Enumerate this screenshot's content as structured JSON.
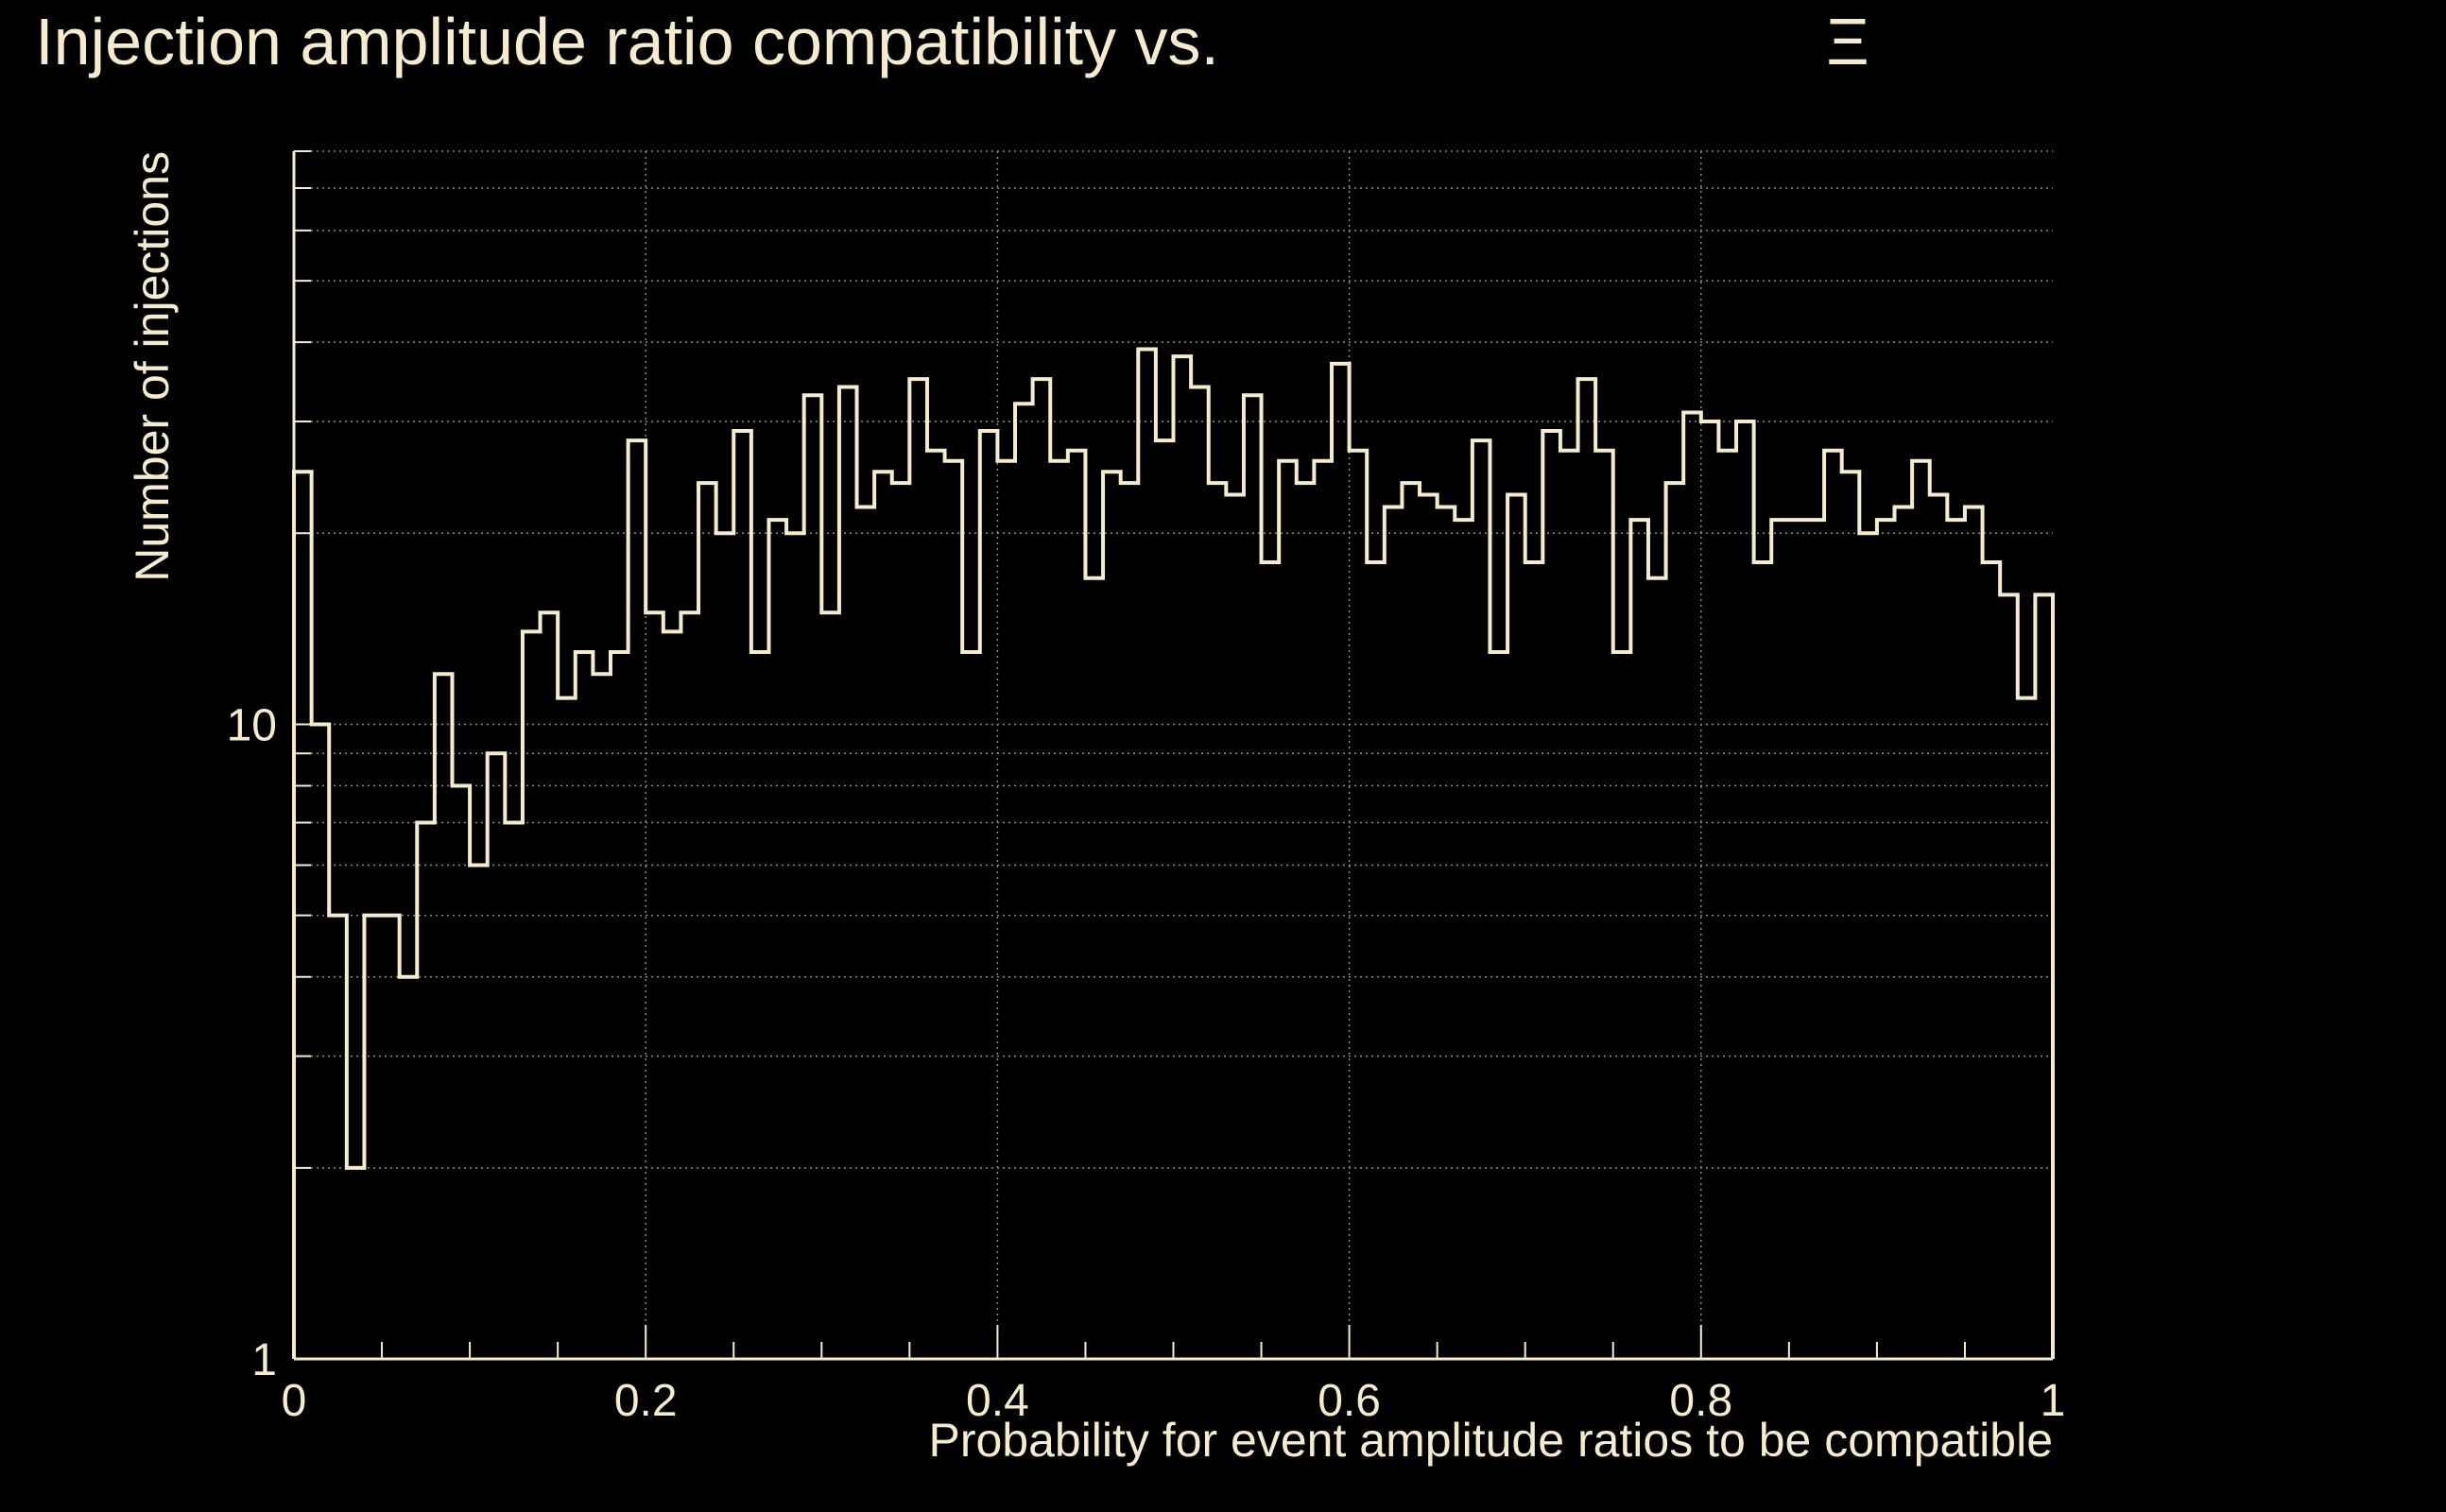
{
  "colors": {
    "background": "#000000",
    "foreground": "#f5ecd0",
    "grid": "#8a8a8a"
  },
  "chart_data": {
    "type": "bar",
    "title": "Injection amplitude ratio compatibility vs.",
    "title_symbol": "Ξ",
    "xlabel": "Probability for event amplitude ratios to be compatible",
    "ylabel": "Number of injections",
    "xlim": [
      0,
      1
    ],
    "ylim": [
      1,
      80
    ],
    "y_scale": "log",
    "grid": true,
    "x_ticks": [
      0,
      0.2,
      0.4,
      0.6,
      0.8,
      1
    ],
    "x_tick_labels": [
      "0",
      "0.2",
      "0.4",
      "0.6",
      "0.8",
      "1"
    ],
    "y_ticks": [
      1,
      10
    ],
    "y_tick_labels": [
      "1",
      "10"
    ],
    "bin_width": 0.01,
    "values": [
      25,
      10,
      5,
      2,
      5,
      5,
      4,
      7,
      12,
      8,
      6,
      9,
      7,
      14,
      15,
      11,
      13,
      12,
      13,
      28,
      15,
      14,
      15,
      24,
      20,
      29,
      13,
      21,
      20,
      33,
      15,
      34,
      22,
      25,
      24,
      35,
      27,
      26,
      13,
      29,
      26,
      32,
      35,
      26,
      27,
      17,
      25,
      24,
      39,
      28,
      38,
      34,
      24,
      23,
      33,
      18,
      26,
      24,
      26,
      37,
      27,
      18,
      22,
      24,
      23,
      22,
      21,
      28,
      13,
      23,
      18,
      29,
      27,
      35,
      27,
      13,
      21,
      17,
      24,
      31,
      30,
      27,
      30,
      18,
      21,
      21,
      21,
      27,
      25,
      20,
      21,
      22,
      26,
      23,
      21,
      22,
      18,
      16,
      11,
      16
    ]
  }
}
